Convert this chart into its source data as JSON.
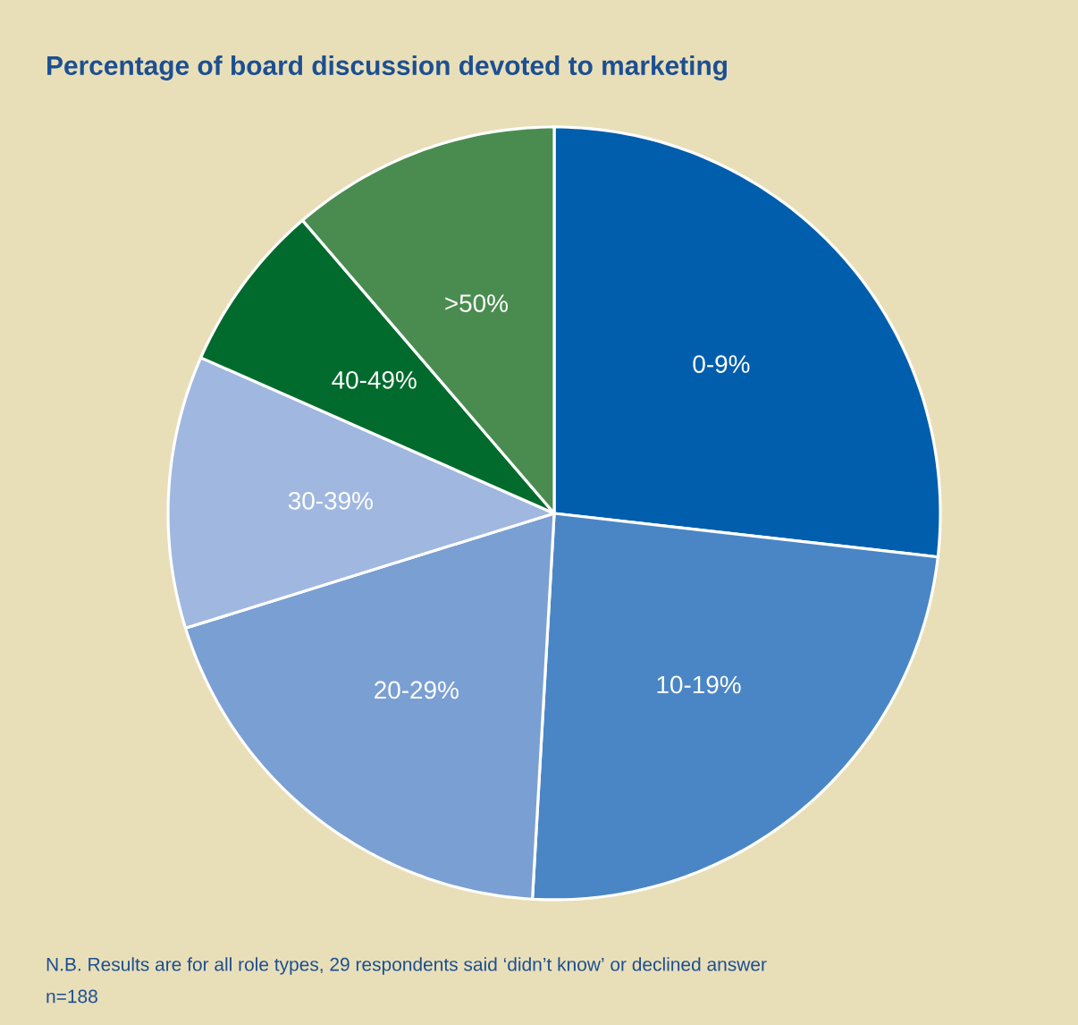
{
  "chart_data": {
    "type": "pie",
    "title": "Percentage of board discussion devoted to marketing",
    "categories": [
      "0-9%",
      "10-19%",
      "20-29%",
      "30-39%",
      "40-49%",
      ">50%"
    ],
    "values": [
      26.8,
      24.1,
      19.3,
      11.4,
      7.1,
      11.3
    ],
    "colors": [
      "#005ead",
      "#4a86c5",
      "#7a9fd3",
      "#a0b8e0",
      "#006b2c",
      "#4a8c50"
    ],
    "annotations": [
      "N.B. Results are for all role types, 29 respondents said ‘didn’t know’ or declined answer",
      "n=188"
    ]
  }
}
